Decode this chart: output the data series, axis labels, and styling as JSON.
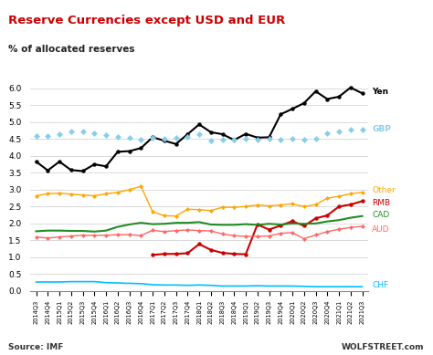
{
  "title": "Reserve Currencies except USD and EUR",
  "ylabel": "% of allocated reserves",
  "source_left": "Source: IMF",
  "source_right": "WOLFSTREET.com",
  "x_labels": [
    "2014Q3",
    "2014Q4",
    "2015Q1",
    "2015Q2",
    "2015Q3",
    "2015Q4",
    "2016Q1",
    "2016Q2",
    "2016Q3",
    "2016Q4",
    "2017Q1",
    "2017Q2",
    "2017Q3",
    "2017Q4",
    "2018Q1",
    "2018Q2",
    "2018Q3",
    "2018Q4",
    "2019Q1",
    "2019Q2",
    "2019Q3",
    "2019Q4",
    "2020Q1",
    "2020Q2",
    "2020Q3",
    "2020Q4",
    "2021Q1",
    "2021Q2",
    "2021Q3"
  ],
  "series": {
    "Yen": {
      "color": "#000000",
      "data": [
        3.83,
        3.57,
        3.83,
        3.58,
        3.55,
        3.75,
        3.69,
        4.12,
        4.14,
        4.23,
        4.55,
        4.45,
        4.35,
        4.64,
        4.93,
        4.7,
        4.64,
        4.47,
        4.65,
        4.54,
        4.55,
        5.23,
        5.39,
        5.56,
        5.91,
        5.68,
        5.75,
        6.02,
        5.85
      ],
      "marker": "o",
      "lw": 1.5,
      "ms": 2.8
    },
    "GBP": {
      "color": "#87CEEB",
      "data": [
        4.6,
        4.6,
        4.65,
        4.72,
        4.73,
        4.68,
        4.62,
        4.55,
        4.53,
        4.47,
        4.53,
        4.52,
        4.53,
        4.57,
        4.63,
        4.46,
        4.48,
        4.47,
        4.5,
        4.47,
        4.5,
        4.49,
        4.5,
        4.48,
        4.5,
        4.67,
        4.73,
        4.79,
        4.79
      ],
      "marker": "D",
      "lw": 0.0,
      "ms": 3.2
    },
    "Other": {
      "color": "#FFA500",
      "data": [
        2.82,
        2.88,
        2.9,
        2.87,
        2.84,
        2.82,
        2.88,
        2.92,
        3.0,
        3.1,
        2.35,
        2.23,
        2.22,
        2.42,
        2.41,
        2.38,
        2.48,
        2.48,
        2.5,
        2.55,
        2.52,
        2.55,
        2.58,
        2.5,
        2.56,
        2.75,
        2.8,
        2.88,
        2.92
      ],
      "marker": "D",
      "lw": 1.0,
      "ms": 2.2
    },
    "RMB": {
      "color": "#CC0000",
      "data": [
        null,
        null,
        null,
        null,
        null,
        null,
        null,
        null,
        null,
        null,
        1.07,
        1.1,
        1.1,
        1.12,
        1.39,
        1.22,
        1.13,
        1.1,
        1.09,
        1.97,
        1.82,
        1.94,
        2.07,
        1.93,
        2.15,
        2.24,
        2.5,
        2.56,
        2.66
      ],
      "marker": "o",
      "lw": 1.5,
      "ms": 2.8
    },
    "CAD": {
      "color": "#228B22",
      "data": [
        1.77,
        1.79,
        1.79,
        1.78,
        1.78,
        1.76,
        1.79,
        1.9,
        1.97,
        2.02,
        1.98,
        1.99,
        2.02,
        2.02,
        2.04,
        1.97,
        1.96,
        1.96,
        1.98,
        1.96,
        1.99,
        1.97,
        2.0,
        1.99,
        2.0,
        2.06,
        2.1,
        2.17,
        2.22
      ],
      "marker": "None",
      "lw": 1.5,
      "ms": 0
    },
    "AUD": {
      "color": "#FF6666",
      "data": [
        1.6,
        1.57,
        1.6,
        1.63,
        1.65,
        1.65,
        1.65,
        1.67,
        1.67,
        1.64,
        1.8,
        1.76,
        1.79,
        1.81,
        1.79,
        1.78,
        1.69,
        1.64,
        1.62,
        1.62,
        1.63,
        1.71,
        1.73,
        1.55,
        1.66,
        1.76,
        1.83,
        1.88,
        1.92
      ],
      "marker": "D",
      "lw": 1.0,
      "ms": 2.2
    },
    "CHF": {
      "color": "#00BFFF",
      "data": [
        0.27,
        0.27,
        0.27,
        0.28,
        0.28,
        0.28,
        0.25,
        0.24,
        0.23,
        0.22,
        0.19,
        0.18,
        0.18,
        0.17,
        0.18,
        0.17,
        0.15,
        0.15,
        0.15,
        0.16,
        0.15,
        0.15,
        0.15,
        0.14,
        0.13,
        0.13,
        0.13,
        0.13,
        0.13
      ],
      "marker": "None",
      "lw": 1.2,
      "ms": 0
    }
  },
  "ylim": [
    0.0,
    6.3
  ],
  "yticks": [
    0.0,
    0.5,
    1.0,
    1.5,
    2.0,
    2.5,
    3.0,
    3.5,
    4.0,
    4.5,
    5.0,
    5.5,
    6.0
  ],
  "bg_color": "#FFFFFF",
  "grid_color": "#CCCCCC",
  "title_color": "#CC0000",
  "label_order": [
    "Yen",
    "GBP",
    "Other",
    "RMB",
    "CAD",
    "AUD",
    "CHF"
  ],
  "label_colors": {
    "Yen": "#000000",
    "GBP": "#87CEEB",
    "Other": "#FFA500",
    "RMB": "#CC0000",
    "CAD": "#228B22",
    "AUD": "#FF6666",
    "CHF": "#00BFFF"
  },
  "label_y_offsets": {
    "Yen": 0.05,
    "GBP": 0.0,
    "Other": 0.06,
    "RMB": -0.05,
    "CAD": 0.04,
    "AUD": -0.1,
    "CHF": 0.04
  }
}
